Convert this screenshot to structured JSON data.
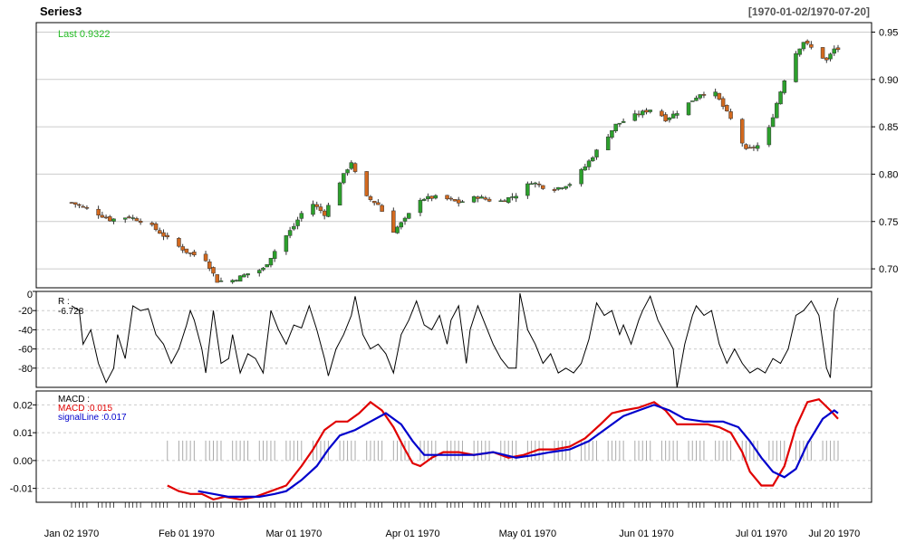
{
  "chart_data": {
    "type": "candlestick",
    "title": "Series3",
    "date_range": "[1970-01-02/1970-07-20]",
    "last_label": "Last 0.9322",
    "colors": {
      "up": "#2ca02c",
      "down": "#d2691e",
      "last": "#22bb22",
      "macd": "#e00000",
      "signal": "#0000cc",
      "grid": "#cccccc"
    },
    "x_ticks": [
      "Jan 02 1970",
      "Feb 01 1970",
      "Mar 01 1970",
      "Apr 01 1970",
      "May 01 1970",
      "Jun 01 1970",
      "Jul 01 1970",
      "Jul 20 1970"
    ],
    "x_tick_days": [
      0,
      30,
      58,
      89,
      119,
      150,
      180,
      199
    ],
    "price": {
      "ylim": [
        0.68,
        0.96
      ],
      "ticks": [
        "0.70",
        "0.75",
        "0.80",
        "0.85",
        "0.90",
        "0.95"
      ],
      "close_anchors": [
        [
          0,
          0.77
        ],
        [
          5,
          0.762
        ],
        [
          10,
          0.752
        ],
        [
          15,
          0.755
        ],
        [
          20,
          0.748
        ],
        [
          25,
          0.732
        ],
        [
          30,
          0.718
        ],
        [
          35,
          0.71
        ],
        [
          38,
          0.687
        ],
        [
          42,
          0.688
        ],
        [
          46,
          0.695
        ],
        [
          50,
          0.7
        ],
        [
          54,
          0.725
        ],
        [
          58,
          0.745
        ],
        [
          62,
          0.772
        ],
        [
          66,
          0.758
        ],
        [
          70,
          0.792
        ],
        [
          73,
          0.813
        ],
        [
          76,
          0.778
        ],
        [
          80,
          0.768
        ],
        [
          84,
          0.74
        ],
        [
          87,
          0.752
        ],
        [
          91,
          0.774
        ],
        [
          96,
          0.776
        ],
        [
          101,
          0.77
        ],
        [
          106,
          0.776
        ],
        [
          111,
          0.77
        ],
        [
          116,
          0.778
        ],
        [
          120,
          0.792
        ],
        [
          125,
          0.783
        ],
        [
          130,
          0.79
        ],
        [
          134,
          0.808
        ],
        [
          138,
          0.83
        ],
        [
          142,
          0.852
        ],
        [
          147,
          0.862
        ],
        [
          152,
          0.87
        ],
        [
          155,
          0.858
        ],
        [
          159,
          0.868
        ],
        [
          164,
          0.885
        ],
        [
          168,
          0.885
        ],
        [
          172,
          0.858
        ],
        [
          176,
          0.825
        ],
        [
          179,
          0.83
        ],
        [
          182,
          0.848
        ],
        [
          184,
          0.875
        ],
        [
          186,
          0.9
        ],
        [
          189,
          0.928
        ],
        [
          191,
          0.94
        ],
        [
          194,
          0.93
        ],
        [
          197,
          0.92
        ],
        [
          199,
          0.932
        ]
      ]
    },
    "williams_r": {
      "label": "R :",
      "last_label": "-6.728",
      "ylim": [
        -100,
        0
      ],
      "ticks": [
        "0",
        "-20",
        "-40",
        "-60",
        "-80"
      ],
      "anchors": [
        [
          0,
          -15
        ],
        [
          2,
          -20
        ],
        [
          3,
          -55
        ],
        [
          5,
          -40
        ],
        [
          7,
          -75
        ],
        [
          9,
          -95
        ],
        [
          11,
          -80
        ],
        [
          12,
          -45
        ],
        [
          14,
          -70
        ],
        [
          16,
          -15
        ],
        [
          18,
          -20
        ],
        [
          20,
          -18
        ],
        [
          22,
          -45
        ],
        [
          24,
          -55
        ],
        [
          26,
          -75
        ],
        [
          28,
          -60
        ],
        [
          30,
          -35
        ],
        [
          31,
          -20
        ],
        [
          32,
          -30
        ],
        [
          34,
          -60
        ],
        [
          35,
          -85
        ],
        [
          37,
          -20
        ],
        [
          39,
          -75
        ],
        [
          41,
          -70
        ],
        [
          42,
          -45
        ],
        [
          44,
          -85
        ],
        [
          46,
          -65
        ],
        [
          48,
          -70
        ],
        [
          50,
          -85
        ],
        [
          52,
          -20
        ],
        [
          54,
          -40
        ],
        [
          56,
          -55
        ],
        [
          58,
          -35
        ],
        [
          60,
          -38
        ],
        [
          62,
          -15
        ],
        [
          64,
          -40
        ],
        [
          66,
          -70
        ],
        [
          67,
          -88
        ],
        [
          69,
          -60
        ],
        [
          71,
          -45
        ],
        [
          73,
          -25
        ],
        [
          74,
          -5
        ],
        [
          76,
          -45
        ],
        [
          78,
          -60
        ],
        [
          80,
          -55
        ],
        [
          82,
          -65
        ],
        [
          84,
          -85
        ],
        [
          86,
          -45
        ],
        [
          88,
          -30
        ],
        [
          90,
          -10
        ],
        [
          92,
          -35
        ],
        [
          94,
          -40
        ],
        [
          96,
          -25
        ],
        [
          98,
          -55
        ],
        [
          99,
          -30
        ],
        [
          101,
          -15
        ],
        [
          103,
          -75
        ],
        [
          104,
          -40
        ],
        [
          106,
          -15
        ],
        [
          108,
          -35
        ],
        [
          110,
          -55
        ],
        [
          112,
          -70
        ],
        [
          114,
          -80
        ],
        [
          116,
          -80
        ],
        [
          117,
          -2
        ],
        [
          119,
          -40
        ],
        [
          121,
          -55
        ],
        [
          123,
          -75
        ],
        [
          125,
          -65
        ],
        [
          127,
          -85
        ],
        [
          129,
          -80
        ],
        [
          131,
          -85
        ],
        [
          133,
          -75
        ],
        [
          135,
          -50
        ],
        [
          137,
          -12
        ],
        [
          139,
          -25
        ],
        [
          141,
          -20
        ],
        [
          143,
          -45
        ],
        [
          144,
          -35
        ],
        [
          146,
          -55
        ],
        [
          148,
          -30
        ],
        [
          149,
          -20
        ],
        [
          151,
          -5
        ],
        [
          153,
          -30
        ],
        [
          155,
          -45
        ],
        [
          157,
          -60
        ],
        [
          158,
          -100
        ],
        [
          160,
          -55
        ],
        [
          162,
          -25
        ],
        [
          163,
          -15
        ],
        [
          165,
          -25
        ],
        [
          167,
          -20
        ],
        [
          169,
          -55
        ],
        [
          171,
          -75
        ],
        [
          173,
          -60
        ],
        [
          175,
          -75
        ],
        [
          177,
          -85
        ],
        [
          179,
          -80
        ],
        [
          181,
          -85
        ],
        [
          183,
          -70
        ],
        [
          185,
          -75
        ],
        [
          187,
          -60
        ],
        [
          189,
          -25
        ],
        [
          191,
          -20
        ],
        [
          193,
          -10
        ],
        [
          195,
          -25
        ],
        [
          197,
          -80
        ],
        [
          198,
          -90
        ],
        [
          199,
          -20
        ],
        [
          200,
          -6.7
        ]
      ]
    },
    "macd": {
      "label": "MACD :",
      "macd_label": "MACD :0.015",
      "signal_label": "signalLine :0.017",
      "ylim": [
        -0.015,
        0.025
      ],
      "ticks": [
        "0.02",
        "0.01",
        "0.00",
        "-0.01"
      ],
      "tick_values": [
        0.02,
        0.01,
        0.0,
        -0.01
      ],
      "macd_anchors": [
        [
          25,
          -0.009
        ],
        [
          28,
          -0.011
        ],
        [
          31,
          -0.012
        ],
        [
          34,
          -0.012
        ],
        [
          37,
          -0.014
        ],
        [
          40,
          -0.013
        ],
        [
          44,
          -0.014
        ],
        [
          48,
          -0.013
        ],
        [
          52,
          -0.011
        ],
        [
          56,
          -0.009
        ],
        [
          60,
          -0.002
        ],
        [
          63,
          0.004
        ],
        [
          66,
          0.011
        ],
        [
          69,
          0.014
        ],
        [
          72,
          0.014
        ],
        [
          75,
          0.017
        ],
        [
          78,
          0.021
        ],
        [
          81,
          0.018
        ],
        [
          84,
          0.012
        ],
        [
          87,
          0.004
        ],
        [
          89,
          -0.001
        ],
        [
          91,
          -0.002
        ],
        [
          94,
          0.001
        ],
        [
          97,
          0.003
        ],
        [
          101,
          0.003
        ],
        [
          105,
          0.002
        ],
        [
          110,
          0.003
        ],
        [
          114,
          0.001
        ],
        [
          118,
          0.002
        ],
        [
          122,
          0.004
        ],
        [
          126,
          0.004
        ],
        [
          130,
          0.005
        ],
        [
          134,
          0.008
        ],
        [
          138,
          0.013
        ],
        [
          141,
          0.017
        ],
        [
          144,
          0.018
        ],
        [
          148,
          0.019
        ],
        [
          152,
          0.021
        ],
        [
          155,
          0.018
        ],
        [
          158,
          0.013
        ],
        [
          162,
          0.013
        ],
        [
          166,
          0.013
        ],
        [
          169,
          0.012
        ],
        [
          172,
          0.01
        ],
        [
          175,
          0.003
        ],
        [
          177,
          -0.004
        ],
        [
          180,
          -0.009
        ],
        [
          183,
          -0.009
        ],
        [
          186,
          -0.002
        ],
        [
          189,
          0.012
        ],
        [
          192,
          0.021
        ],
        [
          195,
          0.022
        ],
        [
          198,
          0.018
        ],
        [
          200,
          0.015
        ]
      ],
      "signal_anchors": [
        [
          33,
          -0.011
        ],
        [
          37,
          -0.012
        ],
        [
          41,
          -0.013
        ],
        [
          45,
          -0.013
        ],
        [
          49,
          -0.013
        ],
        [
          53,
          -0.012
        ],
        [
          56,
          -0.011
        ],
        [
          60,
          -0.007
        ],
        [
          64,
          -0.002
        ],
        [
          67,
          0.004
        ],
        [
          70,
          0.009
        ],
        [
          74,
          0.011
        ],
        [
          78,
          0.014
        ],
        [
          82,
          0.017
        ],
        [
          86,
          0.013
        ],
        [
          89,
          0.007
        ],
        [
          92,
          0.002
        ],
        [
          95,
          0.002
        ],
        [
          100,
          0.002
        ],
        [
          105,
          0.002
        ],
        [
          110,
          0.003
        ],
        [
          116,
          0.001
        ],
        [
          121,
          0.002
        ],
        [
          125,
          0.003
        ],
        [
          130,
          0.004
        ],
        [
          135,
          0.007
        ],
        [
          140,
          0.012
        ],
        [
          144,
          0.016
        ],
        [
          148,
          0.018
        ],
        [
          152,
          0.02
        ],
        [
          156,
          0.018
        ],
        [
          160,
          0.015
        ],
        [
          165,
          0.014
        ],
        [
          170,
          0.014
        ],
        [
          174,
          0.012
        ],
        [
          177,
          0.007
        ],
        [
          180,
          0.001
        ],
        [
          183,
          -0.004
        ],
        [
          186,
          -0.006
        ],
        [
          189,
          -0.003
        ],
        [
          192,
          0.006
        ],
        [
          196,
          0.015
        ],
        [
          199,
          0.018
        ],
        [
          200,
          0.017
        ]
      ],
      "histogram_start_day": 25
    }
  }
}
